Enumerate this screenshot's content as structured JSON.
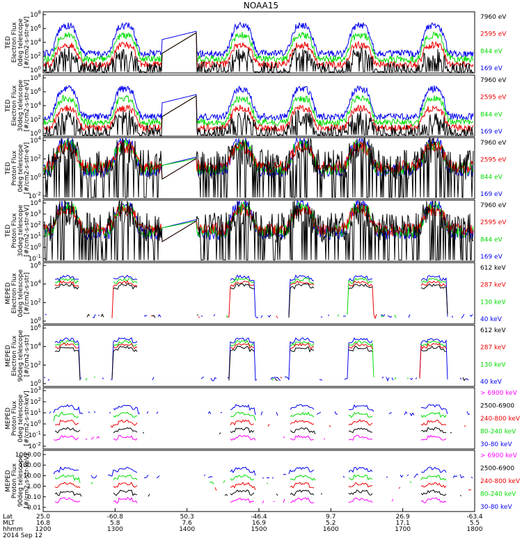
{
  "title": "NOAA15",
  "colors": {
    "black": "#000000",
    "red": "#ee0000",
    "green": "#00dd00",
    "blue": "#0000ee",
    "magenta": "#ff00ff"
  },
  "chart_data": [
    {
      "type": "line",
      "ylabel": [
        "TED",
        "Electron Flux",
        "0deg telescope",
        "[#/cm2-s-str-eV]"
      ],
      "yticks": [
        "10^0",
        "10^2",
        "10^4",
        "10^6",
        "10^8"
      ],
      "ylim_log10": [
        0,
        8
      ],
      "legend": [
        {
          "text": "7960 eV",
          "color": "black"
        },
        {
          "text": "2595 eV",
          "color": "red"
        },
        {
          "text": "844 eV",
          "color": "green"
        },
        {
          "text": "169 eV",
          "color": "blue"
        }
      ]
    },
    {
      "type": "line",
      "ylabel": [
        "TED",
        "Electron Flux",
        "30deg telescope",
        "[#/cm2-s-str-eV]"
      ],
      "yticks": [
        "10^0",
        "10^2",
        "10^4",
        "10^6",
        "10^8"
      ],
      "ylim_log10": [
        0,
        8
      ],
      "legend": [
        {
          "text": "7960 eV",
          "color": "black"
        },
        {
          "text": "2595 eV",
          "color": "red"
        },
        {
          "text": "844 eV",
          "color": "green"
        },
        {
          "text": "169 eV",
          "color": "blue"
        }
      ]
    },
    {
      "type": "line",
      "ylabel": [
        "TED",
        "Proton Flux",
        "0deg telescope",
        "[#/cm2-s-str-eV]"
      ],
      "yticks": [
        "10^-2",
        "10^0",
        "10^2",
        "10^4"
      ],
      "ylim_log10": [
        -3,
        5
      ],
      "legend": [
        {
          "text": "7960 eV",
          "color": "black"
        },
        {
          "text": "2595 eV",
          "color": "red"
        },
        {
          "text": "844 eV",
          "color": "green"
        },
        {
          "text": "169 eV",
          "color": "blue"
        }
      ]
    },
    {
      "type": "line",
      "ylabel": [
        "TED",
        "Proton Flux",
        "30deg telescope",
        "[#/cm2-s-str-eV]"
      ],
      "yticks": [
        "10^-1",
        "10^0",
        "10^1",
        "10^2",
        "10^3",
        "10^4"
      ],
      "ylim_log10": [
        -1,
        4.5
      ],
      "legend": [
        {
          "text": "7960 eV",
          "color": "black"
        },
        {
          "text": "2595 eV",
          "color": "red"
        },
        {
          "text": "844 eV",
          "color": "green"
        },
        {
          "text": "169 eV",
          "color": "blue"
        }
      ]
    },
    {
      "type": "line",
      "ylabel": [
        "MEPED",
        "Electron Flux",
        "0deg telescope",
        "[#/cm2-s-str]"
      ],
      "yticks": [
        "10^0",
        "10^2",
        "10^4",
        "10^6"
      ],
      "ylim_log10": [
        -0.5,
        7
      ],
      "legend": [
        {
          "text": "612 keV",
          "color": "black"
        },
        {
          "text": "287 keV",
          "color": "red"
        },
        {
          "text": "130 keV",
          "color": "green"
        },
        {
          "text": "40 keV",
          "color": "blue"
        }
      ]
    },
    {
      "type": "line",
      "ylabel": [
        "MEPED",
        "Electron Flux",
        "90deg telescope",
        "[#/cm2-s-str]"
      ],
      "yticks": [
        "10^0",
        "10^2",
        "10^4",
        "10^6"
      ],
      "ylim_log10": [
        -0.5,
        7
      ],
      "legend": [
        {
          "text": "612 keV",
          "color": "black"
        },
        {
          "text": "287 keV",
          "color": "red"
        },
        {
          "text": "130 keV",
          "color": "green"
        },
        {
          "text": "40 keV",
          "color": "blue"
        }
      ]
    },
    {
      "type": "line",
      "ylabel": [
        "MEPED",
        "Proton Flux",
        "0deg telescope",
        "[#/cm2-s-str-keV]"
      ],
      "yticks": [
        "10^-2",
        "10^-1",
        "10^0",
        "10^1",
        "10^2",
        "10^3"
      ],
      "ylim_log10": [
        -2.5,
        3.2
      ],
      "legend": [
        {
          "text": "> 6900 keV",
          "color": "magenta"
        },
        {
          "text": "2500-6900",
          "color": "black"
        },
        {
          "text": "240-800 keV",
          "color": "red"
        },
        {
          "text": "80-240 keV",
          "color": "green"
        },
        {
          "text": "30-80 keV",
          "color": "blue"
        }
      ]
    },
    {
      "type": "line",
      "ylabel": [
        "MEPED",
        "Proton Flux",
        "90deg telescope",
        "[#/cm2-s-str-keV]"
      ],
      "yticks": [
        "1000.00",
        "100.00",
        "10.00",
        "1.00",
        "0.10",
        "0.01"
      ],
      "ylim_log10": [
        -2,
        3.3
      ],
      "legend": [
        {
          "text": "> 6900 keV",
          "color": "magenta"
        },
        {
          "text": "2500-6900",
          "color": "black"
        },
        {
          "text": "240-800 keV",
          "color": "red"
        },
        {
          "text": "80-240 keV",
          "color": "green"
        },
        {
          "text": "30-80 keV",
          "color": "blue"
        }
      ]
    }
  ],
  "xaxis": {
    "xlim": [
      "12:00",
      "18:00"
    ],
    "row_labels": [
      "Lat",
      "MLT",
      "hhmm"
    ],
    "ticks": [
      {
        "lat": "25.0",
        "mlt": "16.8",
        "hhmm": "1200"
      },
      {
        "lat": "-60.8",
        "mlt": "5.8",
        "hhmm": "1300"
      },
      {
        "lat": "50.3",
        "mlt": "7.6",
        "hhmm": "1400"
      },
      {
        "lat": "-46.4",
        "mlt": "16.9",
        "hhmm": "1500"
      },
      {
        "lat": "9.7",
        "mlt": "5.2",
        "hhmm": "1600"
      },
      {
        "lat": "26.9",
        "mlt": "17.1",
        "hhmm": "1700"
      },
      {
        "lat": "-63.4",
        "mlt": "5.5",
        "hhmm": "1800"
      }
    ],
    "date": "2014 Sep 12"
  }
}
